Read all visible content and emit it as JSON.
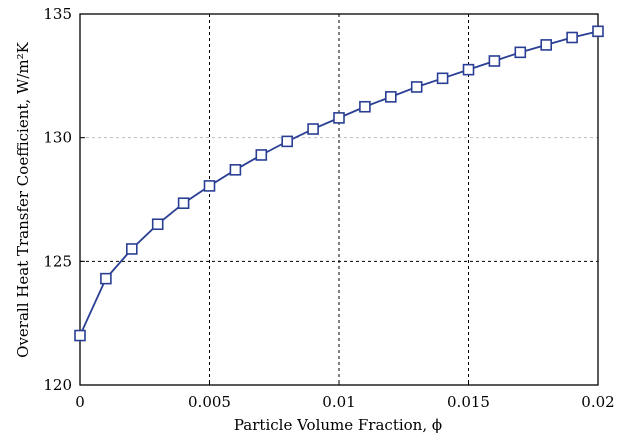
{
  "chart_data": {
    "type": "line",
    "xlabel": "Particle Volume Fraction, ϕ",
    "ylabel": "Overall Heat Transfer Coefficient, W/m²K",
    "xlim": [
      0,
      0.02
    ],
    "ylim": [
      120,
      135
    ],
    "x_ticks": [
      "0",
      "0.005",
      "0.01",
      "0.015",
      "0.02"
    ],
    "y_ticks": [
      "120",
      "125",
      "130",
      "135"
    ],
    "x_tick_values": [
      0,
      0.005,
      0.01,
      0.015,
      0.02
    ],
    "y_tick_values": [
      120,
      125,
      130,
      135
    ],
    "grid": true,
    "series": [
      {
        "marker": "square",
        "color": "#2a3f94",
        "x": [
          0,
          0.001,
          0.002,
          0.003,
          0.004,
          0.005,
          0.006,
          0.007,
          0.008,
          0.009,
          0.01,
          0.011,
          0.012,
          0.013,
          0.014,
          0.015,
          0.016,
          0.017,
          0.018,
          0.019,
          0.02
        ],
        "y": [
          122.0,
          124.3,
          125.5,
          126.5,
          127.35,
          128.05,
          128.7,
          129.3,
          129.85,
          130.35,
          130.8,
          131.25,
          131.65,
          132.05,
          132.4,
          132.75,
          133.1,
          133.45,
          133.75,
          134.05,
          134.3
        ]
      }
    ]
  }
}
